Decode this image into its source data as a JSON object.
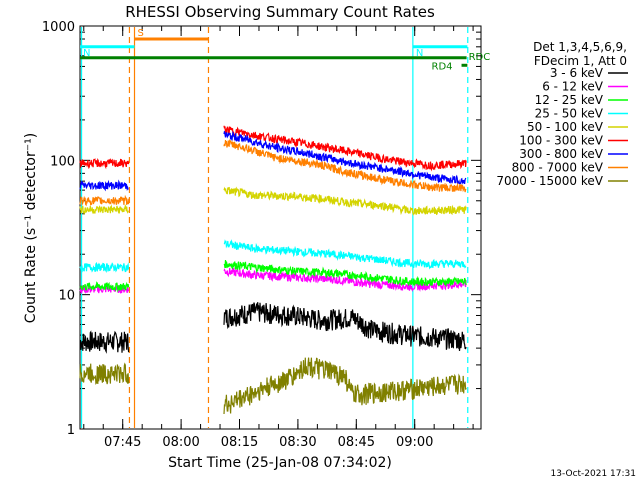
{
  "chart_data": {
    "type": "line",
    "title": "RHESSI Observing Summary Count Rates",
    "xlabel": "Start Time (25-Jan-08 07:34:02)",
    "ylabel": "Count Rate (s⁻¹ detector⁻¹)",
    "yscale": "log",
    "ylim": [
      1,
      1000
    ],
    "x_start_minutes": 0,
    "x_end_minutes": 103,
    "x_ticks": [
      {
        "label": "07:45",
        "minutes": 10.97
      },
      {
        "label": "08:00",
        "minutes": 25.97
      },
      {
        "label": "08:15",
        "minutes": 40.97
      },
      {
        "label": "08:30",
        "minutes": 55.97
      },
      {
        "label": "08:45",
        "minutes": 70.97
      },
      {
        "label": "09:00",
        "minutes": 85.97
      }
    ],
    "y_ticks": [
      {
        "label": "1",
        "value": 1
      },
      {
        "label": "10",
        "value": 10
      },
      {
        "label": "100",
        "value": 100
      },
      {
        "label": "1000",
        "value": 1000
      }
    ],
    "legend_header": [
      "Det 1,3,4,5,6,9,",
      "FDecim 1, Att 0"
    ],
    "legend_position": "right",
    "series": [
      {
        "name": "3 - 6 keV",
        "color": "#000000",
        "segments": [
          {
            "x": [
              0,
              12.5
            ],
            "y": [
              4.5,
              4.5
            ]
          },
          {
            "x": [
              37.0,
              45,
              55,
              62,
              70,
              75,
              85,
              99.2
            ],
            "y": [
              6.8,
              7.5,
              7.0,
              6.5,
              6.8,
              5.5,
              5.0,
              4.6
            ]
          }
        ]
      },
      {
        "name": "6 - 12 keV",
        "color": "#ff00ff",
        "segments": [
          {
            "x": [
              0,
              12.5
            ],
            "y": [
              11,
              11
            ]
          },
          {
            "x": [
              37.0,
              45,
              55,
              65,
              75,
              85,
              99.2
            ],
            "y": [
              15,
              14,
              13.5,
              13,
              12,
              11.5,
              12
            ]
          }
        ]
      },
      {
        "name": "12 - 25 keV",
        "color": "#00ff00",
        "segments": [
          {
            "x": [
              0,
              12.5
            ],
            "y": [
              11.5,
              11.5
            ]
          },
          {
            "x": [
              37.0,
              45,
              55,
              65,
              75,
              85,
              99.2
            ],
            "y": [
              17,
              16,
              15,
              14.5,
              13.5,
              12.5,
              12.5
            ]
          }
        ]
      },
      {
        "name": "25 - 50 keV",
        "color": "#00ffff",
        "segments": [
          {
            "x": [
              0,
              12.5
            ],
            "y": [
              16,
              16
            ]
          },
          {
            "x": [
              37.0,
              45,
              55,
              65,
              75,
              85,
              99.2
            ],
            "y": [
              24,
              22,
              21,
              20,
              18.5,
              17,
              17
            ]
          }
        ]
      },
      {
        "name": "50 - 100 keV",
        "color": "#d4d400",
        "segments": [
          {
            "x": [
              0,
              12.5
            ],
            "y": [
              43,
              43
            ]
          },
          {
            "x": [
              37.0,
              45,
              55,
              62,
              70,
              78,
              85,
              99.2
            ],
            "y": [
              60,
              55,
              54,
              52,
              48,
              46,
              42,
              43
            ]
          }
        ]
      },
      {
        "name": "100 - 300 keV",
        "color": "#ff0000",
        "segments": [
          {
            "x": [
              0,
              12.5
            ],
            "y": [
              95,
              95
            ]
          },
          {
            "x": [
              37.0,
              42,
              50,
              60,
              70,
              80,
              90,
              99.2
            ],
            "y": [
              170,
              160,
              145,
              130,
              115,
              100,
              92,
              95
            ]
          }
        ]
      },
      {
        "name": "300 - 800 keV",
        "color": "#0000ff",
        "segments": [
          {
            "x": [
              0,
              12.5
            ],
            "y": [
              65,
              65
            ]
          },
          {
            "x": [
              37.0,
              42,
              50,
              60,
              70,
              80,
              90,
              99.2
            ],
            "y": [
              155,
              145,
              125,
              110,
              95,
              85,
              75,
              70
            ]
          }
        ]
      },
      {
        "name": "800 - 7000 keV",
        "color": "#ff8000",
        "segments": [
          {
            "x": [
              0,
              12.5
            ],
            "y": [
              50,
              50
            ]
          },
          {
            "x": [
              37.0,
              42,
              50,
              60,
              70,
              80,
              90,
              99.2
            ],
            "y": [
              135,
              125,
              105,
              95,
              80,
              70,
              63,
              62
            ]
          }
        ]
      },
      {
        "name": "7000 - 15000 keV",
        "color": "#808000",
        "segments": [
          {
            "x": [
              0,
              12.5
            ],
            "y": [
              2.6,
              2.6
            ]
          },
          {
            "x": [
              37.0,
              55,
              58,
              68,
              70,
              99.2
            ],
            "y": [
              1.5,
              2.5,
              3.0,
              2.5,
              1.8,
              2.2
            ]
          }
        ]
      }
    ],
    "flags": [
      {
        "label": "S",
        "color": "#ff8000",
        "y": 800,
        "x_start": 14,
        "x_end": 33
      },
      {
        "label": "N",
        "color": "#00ffff",
        "y": 700,
        "x_start": 0,
        "x_end": 14
      },
      {
        "label": "N",
        "color": "#00ffff",
        "y": 700,
        "x_start": 85.5,
        "x_end": 99.5
      },
      {
        "label": "RDC",
        "color": "#008000",
        "y": 580,
        "x_start": 0,
        "x_end": 99.3
      },
      {
        "label": "RD4",
        "color": "#008000",
        "y": 510,
        "x_start": 98,
        "x_end": 99.5
      }
    ],
    "vertical_markers": [
      {
        "x": 0.4,
        "color": "#00ffff",
        "style": "solid"
      },
      {
        "x": 12.7,
        "color": "#ff8000",
        "style": "dashed"
      },
      {
        "x": 14.0,
        "color": "#ff8000",
        "style": "solid"
      },
      {
        "x": 33.0,
        "color": "#ff8000",
        "style": "dashed"
      },
      {
        "x": 85.5,
        "color": "#00ffff",
        "style": "solid"
      },
      {
        "x": 99.6,
        "color": "#00ffff",
        "style": "dashed"
      }
    ],
    "footer_timestamp": "13-Oct-2021 17:31"
  }
}
